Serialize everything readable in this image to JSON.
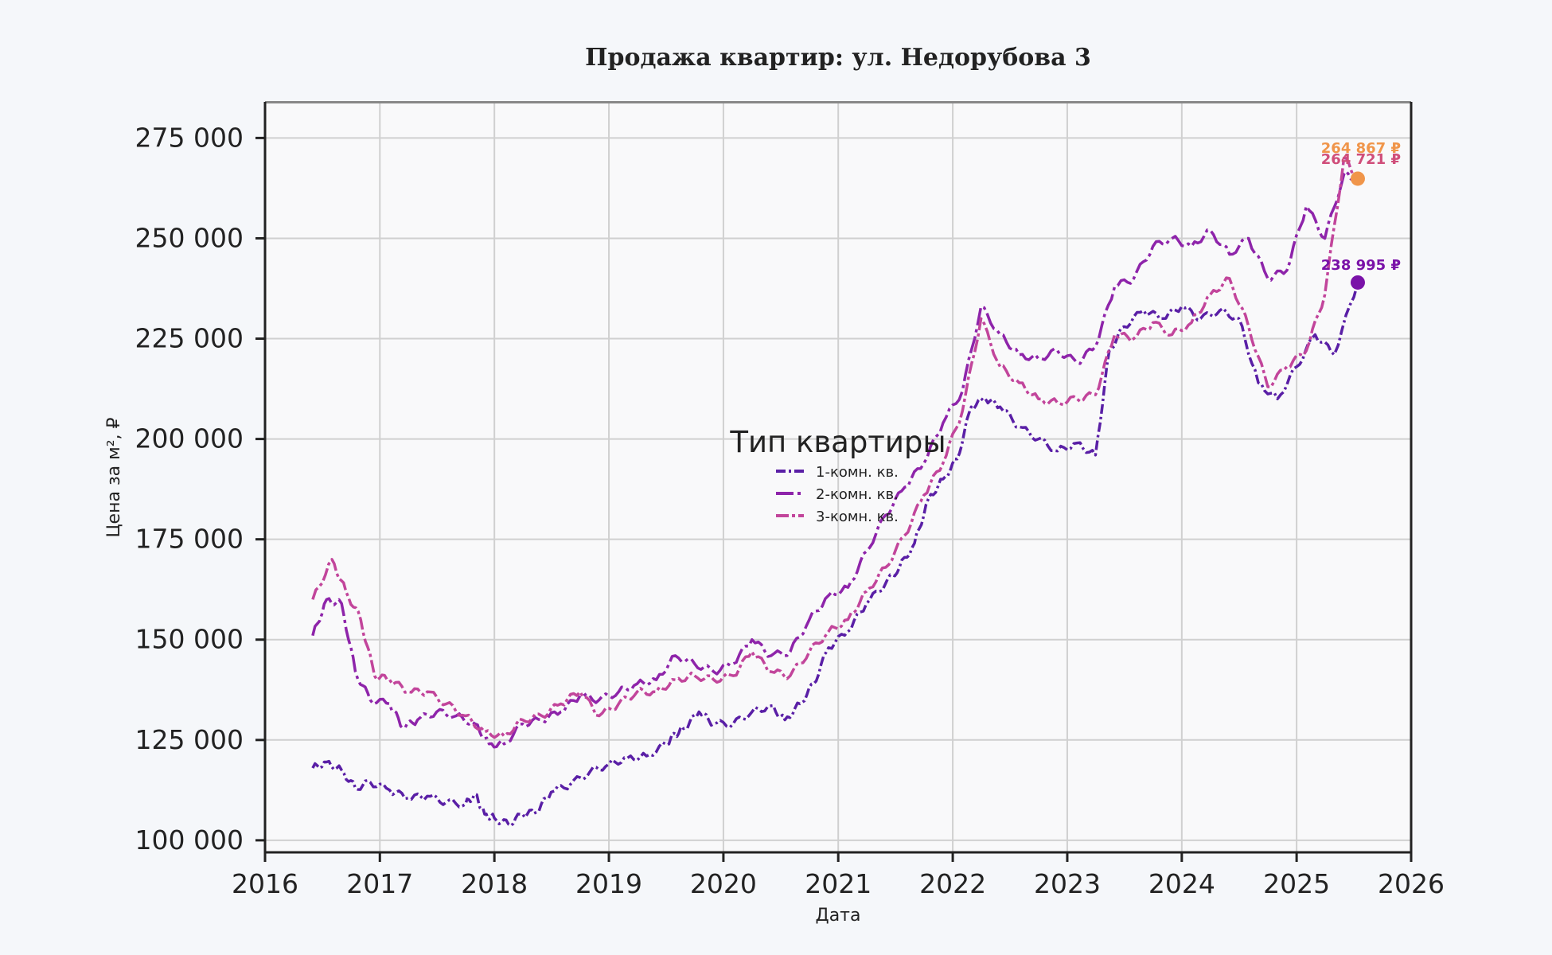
{
  "colors": {
    "page_bg": "#f5f7fa",
    "plot_bg": "#f9f9fa",
    "grid": "#d0d0d0",
    "axis": "#222222"
  },
  "chart_data": {
    "type": "line",
    "title": "Продажа квартир: ул. Недорубова 3",
    "xlabel": "Дата",
    "ylabel": "Цена за м², ₽",
    "xlim": [
      "2016-01-01",
      "2026-01-01"
    ],
    "ylim": [
      97000,
      284000
    ],
    "x_ticks": [
      "2016",
      "2017",
      "2018",
      "2019",
      "2020",
      "2021",
      "2022",
      "2023",
      "2024",
      "2025",
      "2026"
    ],
    "y_ticks": [
      100000,
      125000,
      150000,
      175000,
      200000,
      225000,
      250000,
      275000
    ],
    "y_tick_labels": [
      "100 000",
      "125 000",
      "150 000",
      "175 000",
      "200 000",
      "225 000",
      "250 000",
      "275 000"
    ],
    "grid": true,
    "legend": {
      "title": "Тип квартиры",
      "placement": "center"
    },
    "series": [
      {
        "name": "1-комн. кв.",
        "color": "#5a1fa6",
        "dash": "12 4 3 4",
        "points": [
          [
            "2016-06-01",
            118000
          ],
          [
            "2016-07-15",
            119500
          ],
          [
            "2016-09-01",
            117500
          ],
          [
            "2016-10-15",
            113000
          ],
          [
            "2016-12-01",
            114500
          ],
          [
            "2017-02-01",
            112500
          ],
          [
            "2017-04-01",
            110500
          ],
          [
            "2017-06-01",
            111000
          ],
          [
            "2017-08-01",
            109500
          ],
          [
            "2017-10-01",
            109000
          ],
          [
            "2017-11-01",
            111500
          ],
          [
            "2017-12-01",
            106500
          ],
          [
            "2018-01-01",
            105500
          ],
          [
            "2018-02-15",
            104000
          ],
          [
            "2018-04-01",
            106500
          ],
          [
            "2018-05-15",
            107000
          ],
          [
            "2018-07-01",
            112000
          ],
          [
            "2018-09-01",
            114000
          ],
          [
            "2018-11-01",
            117000
          ],
          [
            "2019-01-01",
            119000
          ],
          [
            "2019-03-01",
            120500
          ],
          [
            "2019-05-01",
            121000
          ],
          [
            "2019-07-01",
            124000
          ],
          [
            "2019-08-01",
            126500
          ],
          [
            "2019-09-01",
            128000
          ],
          [
            "2019-10-15",
            132000
          ],
          [
            "2019-12-01",
            129000
          ],
          [
            "2020-02-01",
            129000
          ],
          [
            "2020-04-01",
            132000
          ],
          [
            "2020-06-01",
            133500
          ],
          [
            "2020-07-15",
            130000
          ],
          [
            "2020-09-01",
            134000
          ],
          [
            "2020-10-15",
            139000
          ],
          [
            "2020-12-01",
            148000
          ],
          [
            "2021-02-01",
            152000
          ],
          [
            "2021-04-01",
            159000
          ],
          [
            "2021-06-01",
            164000
          ],
          [
            "2021-07-15",
            168000
          ],
          [
            "2021-09-01",
            174000
          ],
          [
            "2021-10-15",
            185000
          ],
          [
            "2021-12-01",
            190000
          ],
          [
            "2022-01-15",
            195000
          ],
          [
            "2022-03-01",
            208000
          ],
          [
            "2022-04-15",
            210000
          ],
          [
            "2022-06-01",
            208000
          ],
          [
            "2022-08-01",
            203000
          ],
          [
            "2022-10-01",
            200000
          ],
          [
            "2022-12-01",
            197000
          ],
          [
            "2023-02-01",
            199000
          ],
          [
            "2023-04-01",
            196000
          ],
          [
            "2023-05-15",
            222000
          ],
          [
            "2023-07-01",
            228000
          ],
          [
            "2023-09-01",
            232000
          ],
          [
            "2023-11-01",
            230000
          ],
          [
            "2024-01-01",
            233000
          ],
          [
            "2024-03-01",
            230000
          ],
          [
            "2024-05-01",
            232000
          ],
          [
            "2024-07-01",
            230000
          ],
          [
            "2024-09-01",
            214000
          ],
          [
            "2024-11-01",
            210000
          ],
          [
            "2025-01-01",
            218000
          ],
          [
            "2025-03-01",
            226000
          ],
          [
            "2025-05-01",
            221000
          ],
          [
            "2025-07-15",
            238995
          ]
        ]
      },
      {
        "name": "2-комн. кв.",
        "color": "#8e24aa",
        "dash": "22 5 4 5",
        "points": [
          [
            "2016-06-01",
            151000
          ],
          [
            "2016-07-15",
            160000
          ],
          [
            "2016-09-01",
            159000
          ],
          [
            "2016-10-15",
            142000
          ],
          [
            "2016-12-01",
            135000
          ],
          [
            "2017-02-01",
            134000
          ],
          [
            "2017-03-15",
            128000
          ],
          [
            "2017-05-01",
            130000
          ],
          [
            "2017-07-01",
            132000
          ],
          [
            "2017-09-01",
            131000
          ],
          [
            "2017-11-01",
            129000
          ],
          [
            "2017-12-15",
            124000
          ],
          [
            "2018-02-01",
            124000
          ],
          [
            "2018-04-01",
            129000
          ],
          [
            "2018-06-01",
            130000
          ],
          [
            "2018-08-01",
            132000
          ],
          [
            "2018-10-01",
            136000
          ],
          [
            "2018-12-01",
            135000
          ],
          [
            "2019-02-01",
            137000
          ],
          [
            "2019-04-01",
            139000
          ],
          [
            "2019-06-01",
            140000
          ],
          [
            "2019-08-01",
            146000
          ],
          [
            "2019-10-01",
            144000
          ],
          [
            "2019-12-01",
            142000
          ],
          [
            "2020-02-01",
            144000
          ],
          [
            "2020-04-01",
            150000
          ],
          [
            "2020-06-01",
            146000
          ],
          [
            "2020-08-01",
            147000
          ],
          [
            "2020-10-01",
            155000
          ],
          [
            "2020-12-01",
            161000
          ],
          [
            "2021-02-01",
            163000
          ],
          [
            "2021-04-01",
            172000
          ],
          [
            "2021-06-01",
            181000
          ],
          [
            "2021-08-01",
            188000
          ],
          [
            "2021-10-01",
            194000
          ],
          [
            "2021-12-01",
            204000
          ],
          [
            "2022-02-01",
            212000
          ],
          [
            "2022-04-01",
            233000
          ],
          [
            "2022-06-01",
            226000
          ],
          [
            "2022-08-01",
            221000
          ],
          [
            "2022-10-01",
            220000
          ],
          [
            "2022-12-01",
            222000
          ],
          [
            "2023-02-01",
            219000
          ],
          [
            "2023-04-01",
            223000
          ],
          [
            "2023-06-01",
            238000
          ],
          [
            "2023-08-01",
            240000
          ],
          [
            "2023-10-01",
            248000
          ],
          [
            "2023-12-01",
            250000
          ],
          [
            "2024-02-01",
            248000
          ],
          [
            "2024-04-01",
            252000
          ],
          [
            "2024-06-01",
            246000
          ],
          [
            "2024-08-01",
            250000
          ],
          [
            "2024-10-01",
            240000
          ],
          [
            "2024-12-01",
            242000
          ],
          [
            "2025-02-01",
            258000
          ],
          [
            "2025-04-01",
            250000
          ],
          [
            "2025-06-01",
            266000
          ],
          [
            "2025-07-15",
            264867
          ]
        ]
      },
      {
        "name": "3-комн. кв.",
        "color": "#c2459b",
        "dash": "16 4 4 4",
        "points": [
          [
            "2016-06-01",
            160000
          ],
          [
            "2016-08-01",
            170000
          ],
          [
            "2016-09-15",
            162000
          ],
          [
            "2016-11-01",
            155000
          ],
          [
            "2016-12-15",
            141000
          ],
          [
            "2017-02-01",
            140000
          ],
          [
            "2017-04-01",
            137000
          ],
          [
            "2017-06-01",
            137000
          ],
          [
            "2017-08-01",
            134000
          ],
          [
            "2017-10-01",
            131000
          ],
          [
            "2017-12-01",
            127000
          ],
          [
            "2018-02-01",
            126000
          ],
          [
            "2018-04-01",
            130000
          ],
          [
            "2018-06-01",
            131000
          ],
          [
            "2018-08-01",
            134000
          ],
          [
            "2018-10-01",
            137000
          ],
          [
            "2018-12-01",
            131000
          ],
          [
            "2019-02-01",
            134000
          ],
          [
            "2019-04-01",
            137000
          ],
          [
            "2019-06-01",
            137000
          ],
          [
            "2019-08-01",
            140000
          ],
          [
            "2019-10-01",
            141000
          ],
          [
            "2019-12-01",
            140000
          ],
          [
            "2020-02-01",
            141000
          ],
          [
            "2020-04-01",
            147000
          ],
          [
            "2020-06-01",
            142000
          ],
          [
            "2020-08-01",
            141000
          ],
          [
            "2020-10-01",
            147000
          ],
          [
            "2020-12-01",
            152000
          ],
          [
            "2021-02-01",
            155000
          ],
          [
            "2021-04-01",
            162000
          ],
          [
            "2021-06-01",
            168000
          ],
          [
            "2021-08-01",
            176000
          ],
          [
            "2021-10-01",
            186000
          ],
          [
            "2021-12-01",
            194000
          ],
          [
            "2022-02-01",
            207000
          ],
          [
            "2022-04-01",
            230000
          ],
          [
            "2022-06-01",
            218000
          ],
          [
            "2022-08-01",
            214000
          ],
          [
            "2022-10-01",
            210000
          ],
          [
            "2022-12-01",
            209000
          ],
          [
            "2023-02-01",
            210000
          ],
          [
            "2023-04-01",
            211000
          ],
          [
            "2023-06-01",
            226000
          ],
          [
            "2023-08-01",
            225000
          ],
          [
            "2023-10-01",
            229000
          ],
          [
            "2023-12-01",
            226000
          ],
          [
            "2024-02-01",
            229000
          ],
          [
            "2024-04-01",
            236000
          ],
          [
            "2024-06-01",
            240000
          ],
          [
            "2024-08-01",
            228000
          ],
          [
            "2024-10-01",
            213000
          ],
          [
            "2024-12-01",
            218000
          ],
          [
            "2025-02-01",
            222000
          ],
          [
            "2025-04-01",
            236000
          ],
          [
            "2025-06-01",
            270000
          ],
          [
            "2025-07-15",
            264721
          ]
        ]
      }
    ],
    "annotations": [
      {
        "text": "264 867 ₽",
        "color": "#f0954a",
        "marker": false
      },
      {
        "text": "264 721 ₽",
        "color": "#d04e7a",
        "marker": false
      },
      {
        "text": "238 995 ₽",
        "color": "#7a12a8",
        "marker": false
      }
    ],
    "end_markers": [
      {
        "x": "2025-07-15",
        "y": 264867,
        "color": "#f0954a"
      },
      {
        "x": "2025-07-15",
        "y": 238995,
        "color": "#7a12a8"
      }
    ]
  }
}
